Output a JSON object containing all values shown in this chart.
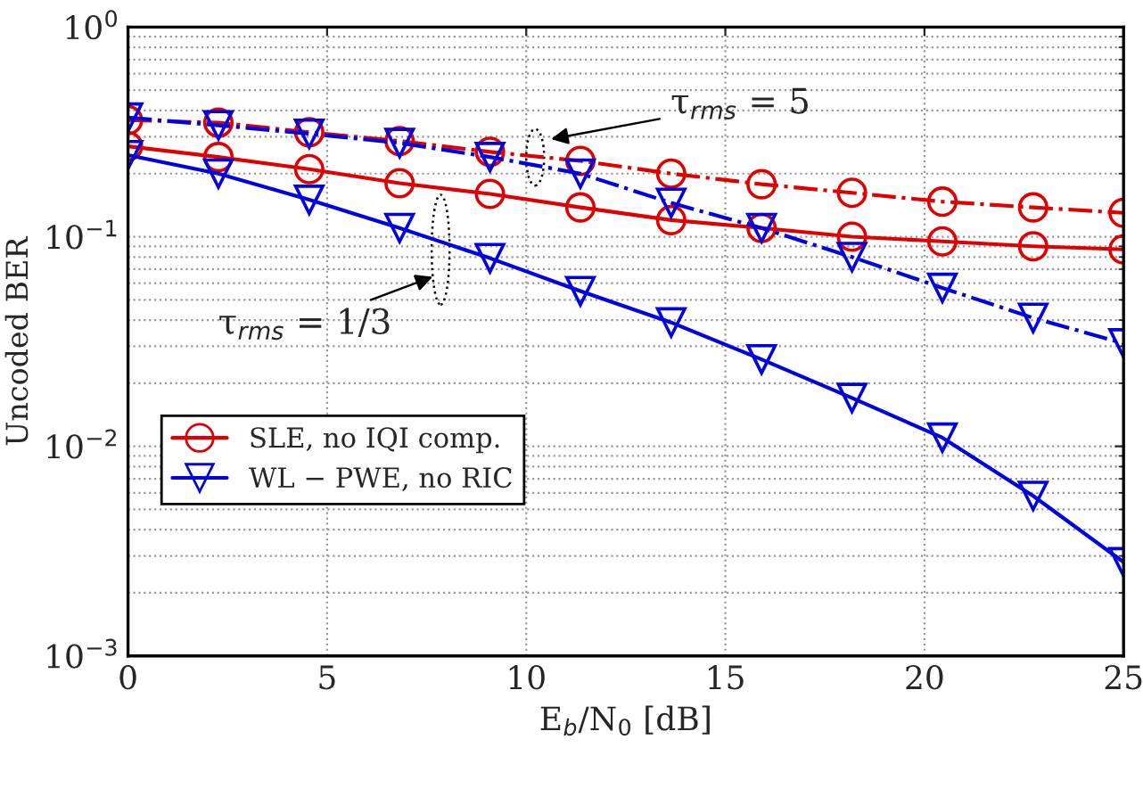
{
  "chart_data": {
    "type": "line",
    "xlabel": "E$_{b}$/N$_{0}$ [dB]",
    "ylabel": "Uncoded BER",
    "x": [
      0,
      2.27,
      4.55,
      6.82,
      9.09,
      11.36,
      13.64,
      15.91,
      18.18,
      20.45,
      22.73,
      25
    ],
    "series": [
      {
        "name": "SLE, no IQI comp.",
        "color": "#e00000",
        "marker": "circle",
        "line_style": "solid",
        "values": [
          0.27,
          0.24,
          0.21,
          0.18,
          0.16,
          0.138,
          0.12,
          0.11,
          0.1,
          0.095,
          0.09,
          0.087
        ]
      },
      {
        "color": "#e00000",
        "marker": "circle",
        "line_style": "dashdot",
        "values": [
          0.36,
          0.35,
          0.315,
          0.286,
          0.254,
          0.23,
          0.2,
          0.178,
          0.162,
          0.147,
          0.138,
          0.13
        ]
      },
      {
        "name": "WL − PWE, no RIC",
        "color": "#0000e0",
        "marker": "triangle",
        "line_style": "solid",
        "values": [
          0.245,
          0.2,
          0.15,
          0.11,
          0.079,
          0.055,
          0.039,
          0.026,
          0.017,
          0.011,
          0.0058,
          0.0028
        ]
      },
      {
        "color": "#0000e0",
        "marker": "triangle",
        "line_style": "dashdot",
        "values": [
          0.37,
          0.34,
          0.31,
          0.28,
          0.24,
          0.2,
          0.145,
          0.11,
          0.08,
          0.057,
          0.041,
          0.031
        ]
      }
    ],
    "log": "y",
    "xlim": [
      0,
      25
    ],
    "xticks": [
      0,
      5,
      10,
      15,
      20,
      25
    ],
    "ylim": [
      0.001,
      1
    ],
    "yticks": [
      {
        "value": 0.001,
        "label": "10$^{−3}$"
      },
      {
        "value": 0.01,
        "label": "10$^{−2}$"
      },
      {
        "value": 0.1,
        "label": "10$^{−1}$"
      },
      {
        "value": 1,
        "label": "10$^{0}$"
      }
    ],
    "grid": true,
    "legend": "bottom left",
    "annotations": [
      "τ$_{rms}$ = 5",
      "τ$_{rms}$ = 1/3"
    ]
  }
}
